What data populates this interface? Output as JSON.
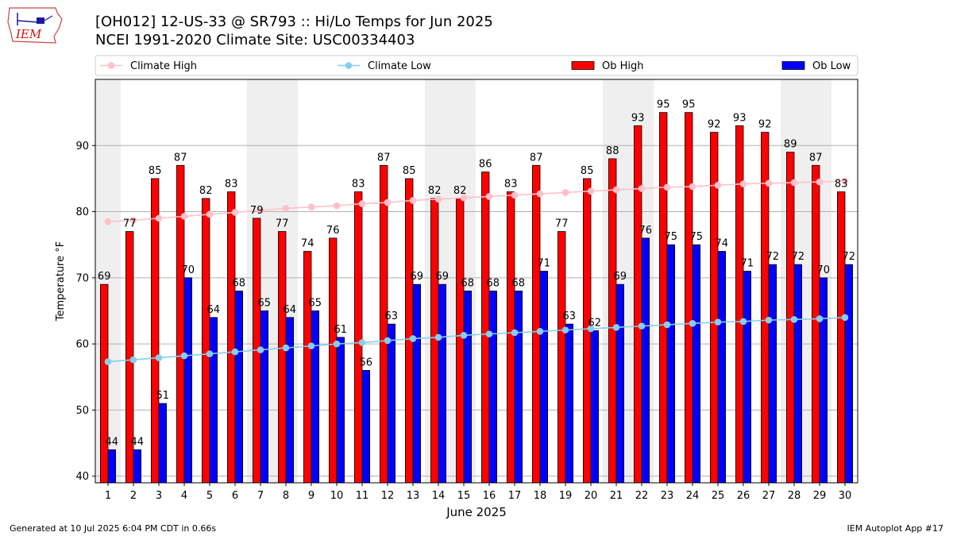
{
  "header": {
    "title_line1": "[OH012] 12-US-33 @ SR793 :: Hi/Lo Temps for Jun 2025",
    "title_line2": "NCEI 1991-2020 Climate Site: USC00334403",
    "logo_text": "IEM"
  },
  "footer": {
    "generated": "Generated at 10 Jul 2025 6:04 PM CDT in 0.66s",
    "app": "IEM Autoplot App #17"
  },
  "colors": {
    "ob_high": "#ff0000",
    "ob_low": "#0000ff",
    "climate_high": "#ffc0cb",
    "climate_low": "#87ceeb",
    "weekend_shade": "#efefef"
  },
  "chart_data": {
    "type": "bar",
    "xlabel": "June 2025",
    "ylabel": "Temperature °F",
    "ylim": [
      39,
      100
    ],
    "yticks": [
      40,
      50,
      60,
      70,
      80,
      90
    ],
    "legend": {
      "placement": "top",
      "entries": [
        "Climate High",
        "Climate Low",
        "Ob High",
        "Ob Low"
      ]
    },
    "categories": [
      1,
      2,
      3,
      4,
      5,
      6,
      7,
      8,
      9,
      10,
      11,
      12,
      13,
      14,
      15,
      16,
      17,
      18,
      19,
      20,
      21,
      22,
      23,
      24,
      25,
      26,
      27,
      28,
      29,
      30
    ],
    "shaded_days": [
      1,
      7,
      8,
      14,
      15,
      21,
      22,
      28,
      29
    ],
    "series": [
      {
        "name": "Ob High",
        "kind": "bar",
        "values": [
          69,
          77,
          85,
          87,
          82,
          83,
          79,
          77,
          74,
          76,
          83,
          87,
          85,
          82,
          82,
          86,
          83,
          87,
          77,
          85,
          88,
          93,
          95,
          95,
          92,
          93,
          92,
          89,
          87,
          83
        ]
      },
      {
        "name": "Ob Low",
        "kind": "bar",
        "values": [
          44,
          44,
          51,
          70,
          64,
          68,
          65,
          64,
          65,
          61,
          56,
          63,
          69,
          69,
          68,
          68,
          68,
          71,
          63,
          62,
          69,
          76,
          75,
          75,
          74,
          71,
          72,
          72,
          70,
          72
        ]
      },
      {
        "name": "Climate High",
        "kind": "line",
        "values": [
          78.5,
          78.7,
          79.0,
          79.3,
          79.6,
          79.9,
          80.2,
          80.5,
          80.7,
          80.9,
          81.2,
          81.4,
          81.7,
          81.9,
          82.1,
          82.3,
          82.5,
          82.7,
          82.9,
          83.1,
          83.3,
          83.5,
          83.7,
          83.8,
          84.0,
          84.2,
          84.3,
          84.4,
          84.5,
          84.6
        ]
      },
      {
        "name": "Climate Low",
        "kind": "line",
        "values": [
          57.3,
          57.6,
          57.9,
          58.2,
          58.5,
          58.8,
          59.1,
          59.4,
          59.7,
          60.0,
          60.2,
          60.5,
          60.8,
          61.0,
          61.3,
          61.5,
          61.7,
          61.9,
          62.1,
          62.3,
          62.5,
          62.7,
          62.9,
          63.1,
          63.3,
          63.4,
          63.6,
          63.7,
          63.8,
          64.0
        ]
      }
    ]
  }
}
